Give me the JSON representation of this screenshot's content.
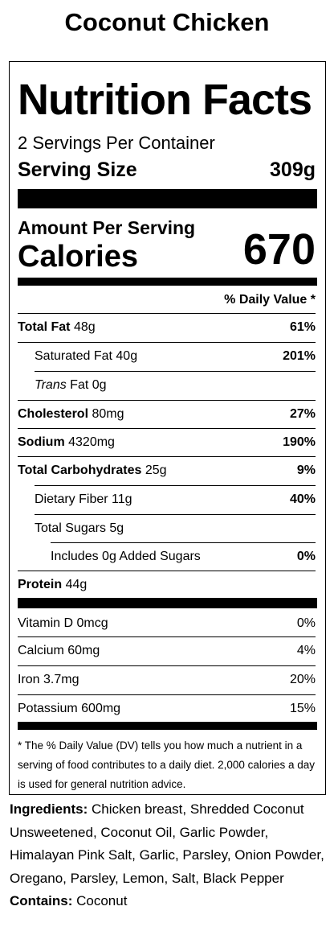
{
  "title": "Coconut Chicken",
  "label": {
    "heading": "Nutrition Facts",
    "servings_per_container": "2 Servings Per Container",
    "serving_size_label": "Serving Size",
    "serving_size_value": "309g",
    "amount_per_serving": "Amount Per Serving",
    "calories_label": "Calories",
    "calories_value": "670",
    "daily_value_header": "% Daily Value *",
    "nutrients": {
      "total_fat": {
        "label": "Total Fat",
        "amount": "48g",
        "dv": "61%"
      },
      "saturated_fat": {
        "label": "Saturated Fat 40g",
        "dv": "201%"
      },
      "trans_fat": {
        "label_italic": "Trans",
        "label": "Fat 0g"
      },
      "cholesterol": {
        "label": "Cholesterol",
        "amount": "80mg",
        "dv": "27%"
      },
      "sodium": {
        "label": "Sodium",
        "amount": "4320mg",
        "dv": "190%"
      },
      "total_carbs": {
        "label": "Total Carbohydrates",
        "amount": "25g",
        "dv": "9%"
      },
      "dietary_fiber": {
        "label": "Dietary Fiber 11g",
        "dv": "40%"
      },
      "total_sugars": {
        "label": "Total Sugars 5g"
      },
      "added_sugars": {
        "label": "Includes 0g Added Sugars",
        "dv": "0%"
      },
      "protein": {
        "label": "Protein",
        "amount": "44g"
      }
    },
    "vitamins": [
      {
        "label": "Vitamin D 0mcg",
        "dv": "0%"
      },
      {
        "label": "Calcium 60mg",
        "dv": "4%"
      },
      {
        "label": "Iron 3.7mg",
        "dv": "20%"
      },
      {
        "label": "Potassium 600mg",
        "dv": "15%"
      }
    ],
    "footnote": "* The % Daily Value (DV) tells you how much a nutrient in a serving of food contributes to a daily diet. 2,000 calories a day is used for general nutrition advice."
  },
  "ingredients": {
    "label": "Ingredients:",
    "text": " Chicken breast, Shredded Coconut Unsweetened, Coconut Oil, Garlic Powder, Himalayan Pink Salt, Garlic, Parsley, Onion Powder, Oregano, Parsley, Lemon, Salt, Black Pepper",
    "contains_label": "Contains:",
    "contains_text": " Coconut"
  }
}
